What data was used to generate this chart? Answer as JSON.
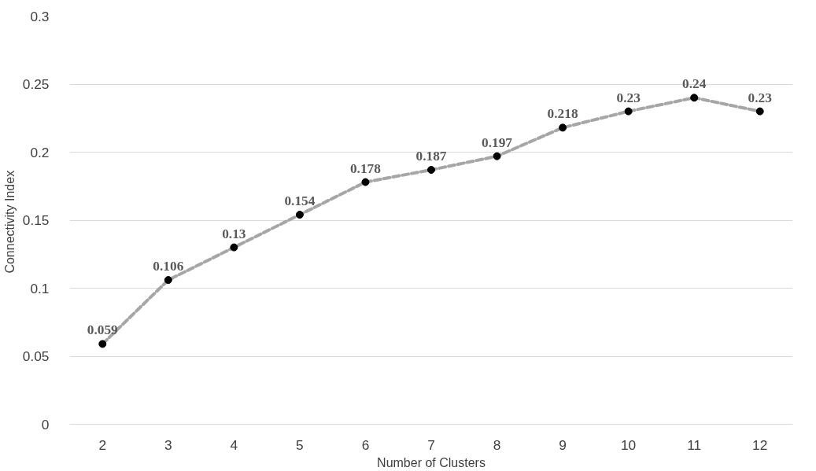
{
  "chart_data": {
    "type": "line",
    "xlabel": "Number of Clusters",
    "ylabel": "Connectivity  Index",
    "categories": [
      "2",
      "3",
      "4",
      "5",
      "6",
      "7",
      "8",
      "9",
      "10",
      "11",
      "12"
    ],
    "series": [
      {
        "color": "#a6a6a6",
        "values": [
          0.059,
          0.106,
          0.13,
          0.154,
          0.178,
          0.187,
          0.197,
          0.218,
          0.23,
          0.24,
          0.23
        ]
      }
    ],
    "ylim": [
      0,
      0.3
    ],
    "yticks": [
      0,
      0.05,
      0.1,
      0.15,
      0.2,
      0.25,
      0.3
    ],
    "grid": "y",
    "data_labels": true,
    "marker": "circle",
    "line_style": "dashed"
  }
}
